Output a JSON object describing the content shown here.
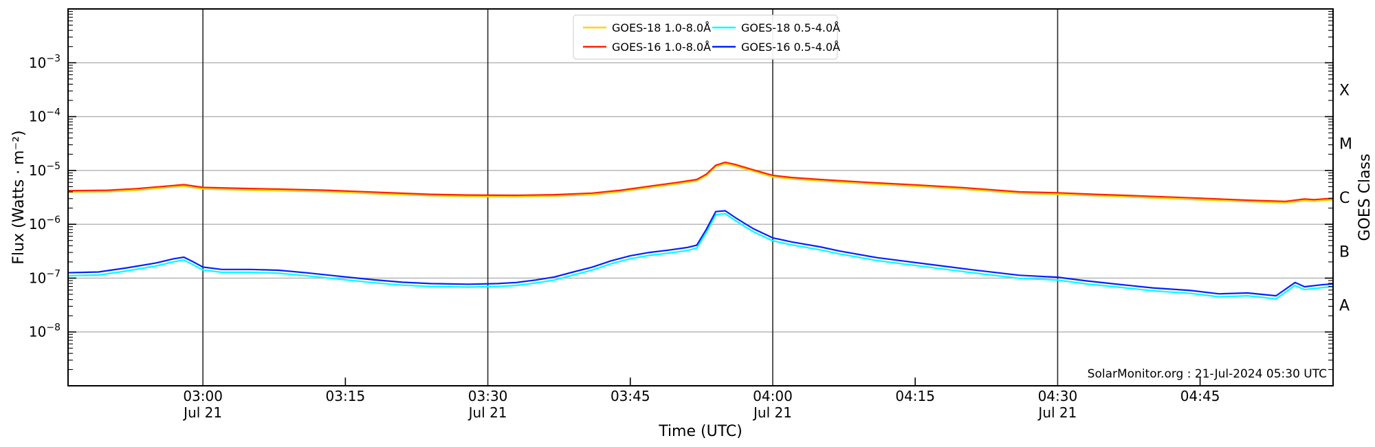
{
  "chart_data": {
    "type": "line",
    "title": "",
    "xlabel": "Time (UTC)",
    "ylabel": "Flux (Watts · m⁻²)",
    "ylabel_right": "GOES Class",
    "credit": "SolarMonitor.org : 21-Jul-2024 05:30 UTC",
    "x_axis": {
      "start": "02:46",
      "end": "04:59",
      "date": "Jul 21"
    },
    "y_axis": {
      "scale": "log",
      "min_exp": -9,
      "max_exp": -2,
      "tick_exponents": [
        -3,
        -4,
        -5,
        -6,
        -7,
        -8
      ],
      "grid": true
    },
    "x_ticks": [
      {
        "label": "03:00",
        "date": "Jul 21",
        "dayline": true
      },
      {
        "label": "03:15"
      },
      {
        "label": "03:30",
        "date": "Jul 21",
        "dayline": true
      },
      {
        "label": "03:45"
      },
      {
        "label": "04:00",
        "date": "Jul 21",
        "dayline": true
      },
      {
        "label": "04:15"
      },
      {
        "label": "04:30",
        "date": "Jul 21",
        "dayline": true
      },
      {
        "label": "04:45"
      }
    ],
    "goes_classes": [
      {
        "label": "X",
        "mid_exp": -3.5
      },
      {
        "label": "M",
        "mid_exp": -4.5
      },
      {
        "label": "C",
        "mid_exp": -5.5
      },
      {
        "label": "B",
        "mid_exp": -6.5
      },
      {
        "label": "A",
        "mid_exp": -7.5
      }
    ],
    "colors": {
      "grid": "#b0b0b0",
      "dayline": "#2b2b2b",
      "spine": "#000000",
      "legend_border": "#d4d4d4"
    },
    "legend": {
      "position": "top-center",
      "columns": 2
    },
    "series": [
      {
        "name": "GOES-18 1.0-8.0Å",
        "color": "#ffd400",
        "points": [
          [
            "02:45",
            3.95e-06
          ],
          [
            "02:50",
            4.05e-06
          ],
          [
            "02:53",
            4.3e-06
          ],
          [
            "02:56",
            4.8e-06
          ],
          [
            "02:58",
            5.1e-06
          ],
          [
            "03:00",
            4.55e-06
          ],
          [
            "03:04",
            4.35e-06
          ],
          [
            "03:08",
            4.2e-06
          ],
          [
            "03:13",
            4.05e-06
          ],
          [
            "03:18",
            3.7e-06
          ],
          [
            "03:24",
            3.4e-06
          ],
          [
            "03:28",
            3.3e-06
          ],
          [
            "03:33",
            3.25e-06
          ],
          [
            "03:37",
            3.35e-06
          ],
          [
            "03:41",
            3.55e-06
          ],
          [
            "03:44",
            4.05e-06
          ],
          [
            "03:47",
            4.8e-06
          ],
          [
            "03:50",
            5.65e-06
          ],
          [
            "03:52",
            6.4e-06
          ],
          [
            "03:53",
            8e-06
          ],
          [
            "03:54",
            1.18e-05
          ],
          [
            "03:55",
            1.33e-05
          ],
          [
            "03:56",
            1.22e-05
          ],
          [
            "03:57",
            1.08e-05
          ],
          [
            "03:58",
            9.6e-06
          ],
          [
            "04:00",
            7.6e-06
          ],
          [
            "04:02",
            6.95e-06
          ],
          [
            "04:05",
            6.4e-06
          ],
          [
            "04:10",
            5.65e-06
          ],
          [
            "04:15",
            5.1e-06
          ],
          [
            "04:20",
            4.5e-06
          ],
          [
            "04:26",
            3.75e-06
          ],
          [
            "04:30",
            3.6e-06
          ],
          [
            "04:34",
            3.4e-06
          ],
          [
            "04:38",
            3.2e-06
          ],
          [
            "04:45",
            2.85e-06
          ],
          [
            "04:50",
            2.65e-06
          ],
          [
            "04:54",
            2.5e-06
          ],
          [
            "04:56",
            2.75e-06
          ],
          [
            "04:57",
            2.7e-06
          ],
          [
            "04:59",
            2.85e-06
          ]
        ]
      },
      {
        "name": "GOES-16 1.0-8.0Å",
        "color": "#ff2200",
        "points": [
          [
            "02:45",
            4.2e-06
          ],
          [
            "02:50",
            4.3e-06
          ],
          [
            "02:53",
            4.6e-06
          ],
          [
            "02:56",
            5.1e-06
          ],
          [
            "02:58",
            5.45e-06
          ],
          [
            "03:00",
            4.85e-06
          ],
          [
            "03:04",
            4.65e-06
          ],
          [
            "03:08",
            4.5e-06
          ],
          [
            "03:13",
            4.3e-06
          ],
          [
            "03:18",
            3.95e-06
          ],
          [
            "03:24",
            3.6e-06
          ],
          [
            "03:28",
            3.5e-06
          ],
          [
            "03:33",
            3.45e-06
          ],
          [
            "03:37",
            3.55e-06
          ],
          [
            "03:41",
            3.8e-06
          ],
          [
            "03:44",
            4.3e-06
          ],
          [
            "03:47",
            5.1e-06
          ],
          [
            "03:50",
            6e-06
          ],
          [
            "03:52",
            6.8e-06
          ],
          [
            "03:53",
            8.5e-06
          ],
          [
            "03:54",
            1.25e-05
          ],
          [
            "03:55",
            1.42e-05
          ],
          [
            "03:56",
            1.3e-05
          ],
          [
            "03:57",
            1.15e-05
          ],
          [
            "03:58",
            1.02e-05
          ],
          [
            "04:00",
            8.1e-06
          ],
          [
            "04:02",
            7.4e-06
          ],
          [
            "04:05",
            6.8e-06
          ],
          [
            "04:10",
            6e-06
          ],
          [
            "04:15",
            5.4e-06
          ],
          [
            "04:20",
            4.8e-06
          ],
          [
            "04:26",
            4e-06
          ],
          [
            "04:30",
            3.85e-06
          ],
          [
            "04:34",
            3.6e-06
          ],
          [
            "04:38",
            3.4e-06
          ],
          [
            "04:45",
            3.05e-06
          ],
          [
            "04:50",
            2.8e-06
          ],
          [
            "04:54",
            2.67e-06
          ],
          [
            "04:56",
            2.95e-06
          ],
          [
            "04:57",
            2.87e-06
          ],
          [
            "04:59",
            3.05e-06
          ]
        ]
      },
      {
        "name": "GOES-18 0.5-4.0Å",
        "color": "#00ffff",
        "points": [
          [
            "02:45",
            1.1e-07
          ],
          [
            "02:49",
            1.14e-07
          ],
          [
            "02:52",
            1.36e-07
          ],
          [
            "02:55",
            1.67e-07
          ],
          [
            "02:57",
            2.02e-07
          ],
          [
            "02:58",
            2.16e-07
          ],
          [
            "02:59",
            1.76e-07
          ],
          [
            "03:00",
            1.41e-07
          ],
          [
            "03:02",
            1.28e-07
          ],
          [
            "03:05",
            1.28e-07
          ],
          [
            "03:08",
            1.23e-07
          ],
          [
            "03:11",
            1.1e-07
          ],
          [
            "03:14",
            9.7e-08
          ],
          [
            "03:18",
            8.2e-08
          ],
          [
            "03:21",
            7.4e-08
          ],
          [
            "03:24",
            7e-08
          ],
          [
            "03:28",
            6.8e-08
          ],
          [
            "03:31",
            7e-08
          ],
          [
            "03:33",
            7.3e-08
          ],
          [
            "03:35",
            8.1e-08
          ],
          [
            "03:37",
            9.2e-08
          ],
          [
            "03:39",
            1.14e-07
          ],
          [
            "03:41",
            1.41e-07
          ],
          [
            "03:43",
            1.85e-07
          ],
          [
            "03:45",
            2.29e-07
          ],
          [
            "03:47",
            2.64e-07
          ],
          [
            "03:49",
            2.9e-07
          ],
          [
            "03:51",
            3.26e-07
          ],
          [
            "03:52",
            3.61e-07
          ],
          [
            "03:53",
            7e-07
          ],
          [
            "03:54",
            1.51e-06
          ],
          [
            "03:55",
            1.57e-06
          ],
          [
            "03:56",
            1.19e-06
          ],
          [
            "03:57",
            9.2e-07
          ],
          [
            "03:58",
            7.2e-07
          ],
          [
            "04:00",
            4.93e-07
          ],
          [
            "04:02",
            4.14e-07
          ],
          [
            "04:05",
            3.34e-07
          ],
          [
            "04:07",
            2.82e-07
          ],
          [
            "04:11",
            2.11e-07
          ],
          [
            "04:16",
            1.63e-07
          ],
          [
            "04:21",
            1.26e-07
          ],
          [
            "04:26",
            9.9e-08
          ],
          [
            "04:30",
            9.2e-08
          ],
          [
            "04:33",
            7.8e-08
          ],
          [
            "04:36",
            6.9e-08
          ],
          [
            "04:40",
            5.8e-08
          ],
          [
            "04:44",
            5.2e-08
          ],
          [
            "04:47",
            4.5e-08
          ],
          [
            "04:50",
            4.7e-08
          ],
          [
            "04:53",
            4.1e-08
          ],
          [
            "04:55",
            7.3e-08
          ],
          [
            "04:56",
            6.1e-08
          ],
          [
            "04:58",
            6.7e-08
          ],
          [
            "04:59",
            6.9e-08
          ]
        ]
      },
      {
        "name": "GOES-16 0.5-4.0Å",
        "color": "#0022ff",
        "points": [
          [
            "02:45",
            1.25e-07
          ],
          [
            "02:49",
            1.3e-07
          ],
          [
            "02:52",
            1.55e-07
          ],
          [
            "02:55",
            1.9e-07
          ],
          [
            "02:57",
            2.3e-07
          ],
          [
            "02:58",
            2.45e-07
          ],
          [
            "02:59",
            2e-07
          ],
          [
            "03:00",
            1.6e-07
          ],
          [
            "03:02",
            1.45e-07
          ],
          [
            "03:05",
            1.45e-07
          ],
          [
            "03:08",
            1.4e-07
          ],
          [
            "03:11",
            1.25e-07
          ],
          [
            "03:14",
            1.1e-07
          ],
          [
            "03:18",
            9.3e-08
          ],
          [
            "03:21",
            8.4e-08
          ],
          [
            "03:24",
            7.9e-08
          ],
          [
            "03:28",
            7.7e-08
          ],
          [
            "03:31",
            7.9e-08
          ],
          [
            "03:33",
            8.3e-08
          ],
          [
            "03:35",
            9.2e-08
          ],
          [
            "03:37",
            1.05e-07
          ],
          [
            "03:39",
            1.3e-07
          ],
          [
            "03:41",
            1.6e-07
          ],
          [
            "03:43",
            2.1e-07
          ],
          [
            "03:45",
            2.6e-07
          ],
          [
            "03:47",
            3e-07
          ],
          [
            "03:49",
            3.3e-07
          ],
          [
            "03:51",
            3.7e-07
          ],
          [
            "03:52",
            4.1e-07
          ],
          [
            "03:53",
            8e-07
          ],
          [
            "03:54",
            1.72e-06
          ],
          [
            "03:55",
            1.78e-06
          ],
          [
            "03:56",
            1.35e-06
          ],
          [
            "03:57",
            1.05e-06
          ],
          [
            "03:58",
            8.2e-07
          ],
          [
            "04:00",
            5.6e-07
          ],
          [
            "04:02",
            4.7e-07
          ],
          [
            "04:05",
            3.8e-07
          ],
          [
            "04:07",
            3.2e-07
          ],
          [
            "04:11",
            2.4e-07
          ],
          [
            "04:16",
            1.85e-07
          ],
          [
            "04:21",
            1.43e-07
          ],
          [
            "04:26",
            1.13e-07
          ],
          [
            "04:30",
            1.04e-07
          ],
          [
            "04:33",
            8.9e-08
          ],
          [
            "04:36",
            7.8e-08
          ],
          [
            "04:40",
            6.6e-08
          ],
          [
            "04:44",
            5.9e-08
          ],
          [
            "04:47",
            5.1e-08
          ],
          [
            "04:50",
            5.3e-08
          ],
          [
            "04:53",
            4.7e-08
          ],
          [
            "04:55",
            8.3e-08
          ],
          [
            "04:56",
            6.9e-08
          ],
          [
            "04:58",
            7.6e-08
          ],
          [
            "04:59",
            7.8e-08
          ]
        ]
      }
    ]
  }
}
